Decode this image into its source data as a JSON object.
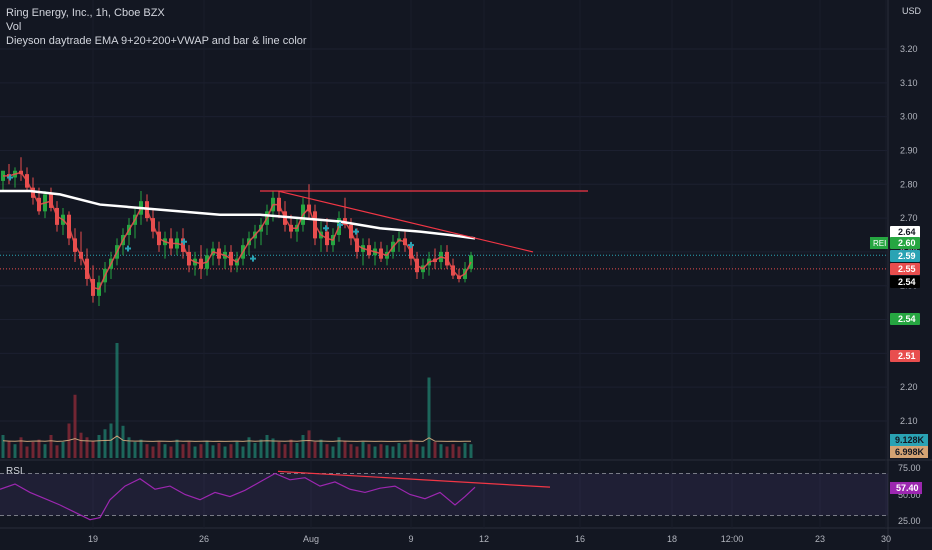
{
  "header": {
    "symbol_line": "Ring Energy, Inc., 1h, Cboe BZX",
    "vol_label": "Vol",
    "indicator_label": "Dieyson daytrade EMA 9+20+200+VWAP and bar & line color",
    "currency": "USD"
  },
  "rsi_panel": {
    "label": "RSI"
  },
  "chart_data": {
    "type": "candlestick",
    "symbol": "REI",
    "x_tick_labels": [
      "19",
      "26",
      "Aug",
      "9",
      "12",
      "16",
      "18",
      "12:00",
      "23",
      "30"
    ],
    "y_tick_labels": [
      "3.20",
      "3.10",
      "3.00",
      "2.90",
      "2.80",
      "2.70",
      "2.60",
      "2.50",
      "2.40",
      "2.30",
      "2.20",
      "2.10"
    ],
    "ylim": [
      2.05,
      3.25
    ],
    "price_badges": [
      {
        "value": "2.64",
        "color": "#ffffff",
        "text_color": "#131722"
      },
      {
        "prefix": "REI",
        "value": "2.60",
        "color": "#26a641",
        "text_color": "#ffffff"
      },
      {
        "value": "2.59",
        "color": "#2aa3b4",
        "text_color": "#ffffff"
      },
      {
        "value": "2.55",
        "color": "#e84e4e",
        "text_color": "#ffffff"
      },
      {
        "value": "2.54",
        "color": "#000000",
        "text_color": "#ffffff"
      },
      {
        "value": "2.54",
        "color": "#26a641",
        "text_color": "#ffffff"
      },
      {
        "value": "2.51",
        "color": "#e84e4e",
        "text_color": "#ffffff"
      }
    ],
    "volume_badges": [
      {
        "value": "9.128K",
        "color": "#2aa3b4"
      },
      {
        "value": "6.998K",
        "color": "#d4a373"
      }
    ],
    "rsi": {
      "y_tick_labels": [
        "75.00",
        "50.00",
        "25.00"
      ],
      "current": "57.40",
      "levels": [
        70,
        30
      ],
      "ylim": [
        20,
        80
      ]
    },
    "ema200_vwap": [
      [
        0,
        2.78
      ],
      [
        30,
        2.78
      ],
      [
        60,
        2.77
      ],
      [
        100,
        2.74
      ],
      [
        140,
        2.73
      ],
      [
        180,
        2.72
      ],
      [
        220,
        2.71
      ],
      [
        260,
        2.71
      ],
      [
        300,
        2.7
      ],
      [
        340,
        2.69
      ],
      [
        380,
        2.67
      ],
      [
        420,
        2.66
      ],
      [
        450,
        2.65
      ],
      [
        475,
        2.64
      ]
    ],
    "resistance_line": {
      "from": [
        260,
        2.78
      ],
      "to": [
        588,
        2.78
      ]
    },
    "trend_line": {
      "from": [
        278,
        2.78
      ],
      "to": [
        533,
        2.6
      ]
    },
    "rsi_trend_line": {
      "from": [
        278,
        72
      ],
      "to": [
        550,
        57
      ]
    },
    "candles": [
      [
        3,
        2.81,
        2.84,
        2.78,
        2.84
      ],
      [
        9,
        2.83,
        2.86,
        2.8,
        2.82
      ],
      [
        15,
        2.82,
        2.85,
        2.79,
        2.84
      ],
      [
        21,
        2.84,
        2.88,
        2.81,
        2.83
      ],
      [
        27,
        2.83,
        2.85,
        2.78,
        2.79
      ],
      [
        33,
        2.79,
        2.82,
        2.74,
        2.76
      ],
      [
        39,
        2.76,
        2.79,
        2.71,
        2.72
      ],
      [
        45,
        2.72,
        2.78,
        2.7,
        2.77
      ],
      [
        51,
        2.77,
        2.79,
        2.72,
        2.73
      ],
      [
        57,
        2.73,
        2.75,
        2.66,
        2.68
      ],
      [
        63,
        2.68,
        2.73,
        2.65,
        2.71
      ],
      [
        69,
        2.71,
        2.72,
        2.62,
        2.64
      ],
      [
        75,
        2.64,
        2.67,
        2.57,
        2.6
      ],
      [
        81,
        2.6,
        2.66,
        2.56,
        2.58
      ],
      [
        87,
        2.58,
        2.61,
        2.5,
        2.52
      ],
      [
        93,
        2.52,
        2.56,
        2.45,
        2.47
      ],
      [
        99,
        2.47,
        2.53,
        2.44,
        2.51
      ],
      [
        105,
        2.51,
        2.57,
        2.48,
        2.55
      ],
      [
        111,
        2.55,
        2.6,
        2.52,
        2.58
      ],
      [
        117,
        2.58,
        2.64,
        2.56,
        2.62
      ],
      [
        123,
        2.62,
        2.67,
        2.59,
        2.65
      ],
      [
        129,
        2.65,
        2.7,
        2.62,
        2.68
      ],
      [
        135,
        2.68,
        2.73,
        2.64,
        2.71
      ],
      [
        141,
        2.71,
        2.78,
        2.68,
        2.75
      ],
      [
        147,
        2.75,
        2.77,
        2.69,
        2.7
      ],
      [
        153,
        2.7,
        2.73,
        2.64,
        2.66
      ],
      [
        159,
        2.66,
        2.69,
        2.6,
        2.62
      ],
      [
        165,
        2.62,
        2.66,
        2.58,
        2.64
      ],
      [
        171,
        2.64,
        2.67,
        2.59,
        2.61
      ],
      [
        177,
        2.61,
        2.66,
        2.59,
        2.64
      ],
      [
        183,
        2.64,
        2.67,
        2.58,
        2.6
      ],
      [
        189,
        2.6,
        2.62,
        2.54,
        2.56
      ],
      [
        195,
        2.56,
        2.6,
        2.53,
        2.58
      ],
      [
        201,
        2.58,
        2.62,
        2.52,
        2.55
      ],
      [
        207,
        2.55,
        2.61,
        2.53,
        2.59
      ],
      [
        213,
        2.59,
        2.63,
        2.56,
        2.61
      ],
      [
        219,
        2.61,
        2.63,
        2.56,
        2.58
      ],
      [
        225,
        2.58,
        2.62,
        2.55,
        2.6
      ],
      [
        231,
        2.6,
        2.62,
        2.54,
        2.56
      ],
      [
        237,
        2.56,
        2.6,
        2.54,
        2.58
      ],
      [
        243,
        2.58,
        2.64,
        2.56,
        2.62
      ],
      [
        249,
        2.62,
        2.66,
        2.59,
        2.64
      ],
      [
        255,
        2.64,
        2.68,
        2.61,
        2.66
      ],
      [
        261,
        2.66,
        2.7,
        2.62,
        2.68
      ],
      [
        267,
        2.68,
        2.74,
        2.65,
        2.72
      ],
      [
        273,
        2.72,
        2.78,
        2.69,
        2.76
      ],
      [
        279,
        2.76,
        2.78,
        2.7,
        2.72
      ],
      [
        285,
        2.72,
        2.75,
        2.66,
        2.68
      ],
      [
        291,
        2.68,
        2.71,
        2.64,
        2.66
      ],
      [
        297,
        2.66,
        2.7,
        2.63,
        2.68
      ],
      [
        303,
        2.68,
        2.76,
        2.66,
        2.74
      ],
      [
        309,
        2.74,
        2.8,
        2.7,
        2.72
      ],
      [
        315,
        2.72,
        2.74,
        2.62,
        2.64
      ],
      [
        321,
        2.64,
        2.69,
        2.6,
        2.66
      ],
      [
        327,
        2.66,
        2.7,
        2.6,
        2.62
      ],
      [
        333,
        2.62,
        2.67,
        2.6,
        2.65
      ],
      [
        339,
        2.65,
        2.72,
        2.63,
        2.7
      ],
      [
        345,
        2.7,
        2.76,
        2.67,
        2.68
      ],
      [
        351,
        2.68,
        2.7,
        2.62,
        2.64
      ],
      [
        357,
        2.64,
        2.67,
        2.58,
        2.6
      ],
      [
        363,
        2.6,
        2.64,
        2.56,
        2.62
      ],
      [
        369,
        2.62,
        2.64,
        2.58,
        2.59
      ],
      [
        375,
        2.59,
        2.63,
        2.56,
        2.61
      ],
      [
        381,
        2.61,
        2.63,
        2.57,
        2.58
      ],
      [
        387,
        2.58,
        2.62,
        2.56,
        2.6
      ],
      [
        393,
        2.6,
        2.65,
        2.58,
        2.63
      ],
      [
        399,
        2.63,
        2.66,
        2.6,
        2.64
      ],
      [
        405,
        2.64,
        2.66,
        2.6,
        2.62
      ],
      [
        411,
        2.62,
        2.63,
        2.56,
        2.58
      ],
      [
        417,
        2.58,
        2.6,
        2.52,
        2.54
      ],
      [
        423,
        2.54,
        2.58,
        2.52,
        2.56
      ],
      [
        429,
        2.56,
        2.6,
        2.53,
        2.58
      ],
      [
        435,
        2.58,
        2.61,
        2.55,
        2.57
      ],
      [
        441,
        2.57,
        2.62,
        2.55,
        2.6
      ],
      [
        447,
        2.6,
        2.62,
        2.55,
        2.56
      ],
      [
        453,
        2.56,
        2.58,
        2.52,
        2.53
      ],
      [
        459,
        2.53,
        2.55,
        2.51,
        2.52
      ],
      [
        465,
        2.52,
        2.57,
        2.51,
        2.55
      ],
      [
        471,
        2.55,
        2.6,
        2.54,
        2.59
      ]
    ],
    "volume": [
      [
        3,
        0.2
      ],
      [
        9,
        0.15
      ],
      [
        15,
        0.12
      ],
      [
        21,
        0.18
      ],
      [
        27,
        0.1
      ],
      [
        33,
        0.14
      ],
      [
        39,
        0.16
      ],
      [
        45,
        0.12
      ],
      [
        51,
        0.2
      ],
      [
        57,
        0.11
      ],
      [
        63,
        0.14
      ],
      [
        69,
        0.3
      ],
      [
        75,
        0.55
      ],
      [
        81,
        0.22
      ],
      [
        87,
        0.18
      ],
      [
        93,
        0.15
      ],
      [
        99,
        0.2
      ],
      [
        105,
        0.25
      ],
      [
        111,
        0.3
      ],
      [
        117,
        1.0
      ],
      [
        123,
        0.28
      ],
      [
        129,
        0.18
      ],
      [
        135,
        0.14
      ],
      [
        141,
        0.16
      ],
      [
        147,
        0.12
      ],
      [
        153,
        0.1
      ],
      [
        159,
        0.14
      ],
      [
        165,
        0.12
      ],
      [
        171,
        0.1
      ],
      [
        177,
        0.16
      ],
      [
        183,
        0.12
      ],
      [
        189,
        0.14
      ],
      [
        195,
        0.1
      ],
      [
        201,
        0.12
      ],
      [
        207,
        0.15
      ],
      [
        213,
        0.11
      ],
      [
        219,
        0.13
      ],
      [
        225,
        0.1
      ],
      [
        231,
        0.12
      ],
      [
        237,
        0.14
      ],
      [
        243,
        0.1
      ],
      [
        249,
        0.18
      ],
      [
        255,
        0.13
      ],
      [
        261,
        0.16
      ],
      [
        267,
        0.2
      ],
      [
        273,
        0.17
      ],
      [
        279,
        0.14
      ],
      [
        285,
        0.12
      ],
      [
        291,
        0.16
      ],
      [
        297,
        0.13
      ],
      [
        303,
        0.2
      ],
      [
        309,
        0.24
      ],
      [
        315,
        0.14
      ],
      [
        321,
        0.16
      ],
      [
        327,
        0.12
      ],
      [
        333,
        0.1
      ],
      [
        339,
        0.18
      ],
      [
        345,
        0.15
      ],
      [
        351,
        0.12
      ],
      [
        357,
        0.1
      ],
      [
        363,
        0.14
      ],
      [
        369,
        0.12
      ],
      [
        375,
        0.1
      ],
      [
        381,
        0.12
      ],
      [
        387,
        0.11
      ],
      [
        393,
        0.1
      ],
      [
        399,
        0.13
      ],
      [
        405,
        0.12
      ],
      [
        411,
        0.16
      ],
      [
        417,
        0.12
      ],
      [
        423,
        0.1
      ],
      [
        429,
        0.7
      ],
      [
        435,
        0.14
      ],
      [
        441,
        0.12
      ],
      [
        447,
        0.1
      ],
      [
        453,
        0.12
      ],
      [
        459,
        0.1
      ],
      [
        465,
        0.13
      ],
      [
        471,
        0.12
      ]
    ],
    "rsi_values": [
      [
        0,
        55
      ],
      [
        15,
        60
      ],
      [
        30,
        52
      ],
      [
        45,
        46
      ],
      [
        60,
        40
      ],
      [
        75,
        33
      ],
      [
        90,
        26
      ],
      [
        100,
        28
      ],
      [
        110,
        45
      ],
      [
        125,
        58
      ],
      [
        140,
        65
      ],
      [
        155,
        55
      ],
      [
        170,
        58
      ],
      [
        185,
        50
      ],
      [
        200,
        45
      ],
      [
        215,
        52
      ],
      [
        230,
        48
      ],
      [
        245,
        54
      ],
      [
        260,
        62
      ],
      [
        275,
        70
      ],
      [
        290,
        64
      ],
      [
        305,
        66
      ],
      [
        320,
        58
      ],
      [
        335,
        62
      ],
      [
        350,
        55
      ],
      [
        365,
        52
      ],
      [
        380,
        56
      ],
      [
        395,
        58
      ],
      [
        410,
        50
      ],
      [
        425,
        46
      ],
      [
        440,
        52
      ],
      [
        455,
        40
      ],
      [
        465,
        48
      ],
      [
        475,
        57
      ]
    ]
  }
}
